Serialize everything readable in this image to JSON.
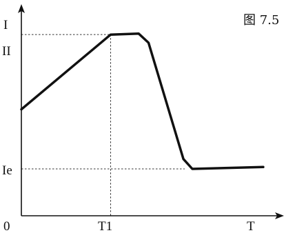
{
  "chart_data": {
    "type": "line",
    "title": "图 7.5",
    "xlabel": "T",
    "ylabel": "I",
    "origin_label": "0",
    "x_marker_label": "T1",
    "y_marker_labels": {
      "upper": "II",
      "lower": "Ie"
    },
    "axes_ticks_numeric": false,
    "grid": false,
    "legend": "none",
    "guide_lines": "dashed",
    "xlim": [
      0,
      1
    ],
    "ylim": [
      0,
      1
    ],
    "series": [
      {
        "values": [
          {
            "x": 0.0,
            "y": 0.52
          },
          {
            "x": 0.351,
            "y": 0.885
          },
          {
            "x": 0.461,
            "y": 0.89
          },
          {
            "x": 0.5,
            "y": 0.845
          },
          {
            "x": 0.637,
            "y": 0.277
          },
          {
            "x": 0.672,
            "y": 0.229
          },
          {
            "x": 0.951,
            "y": 0.238
          }
        ]
      }
    ],
    "markers": {
      "T1_x": 0.351,
      "II_y": 0.885,
      "Ie_y": 0.229,
      "Ie_guide_end_x": 0.642
    },
    "colors": {
      "curve": "#111111",
      "axes": "#111111",
      "guides": "#333333"
    }
  }
}
